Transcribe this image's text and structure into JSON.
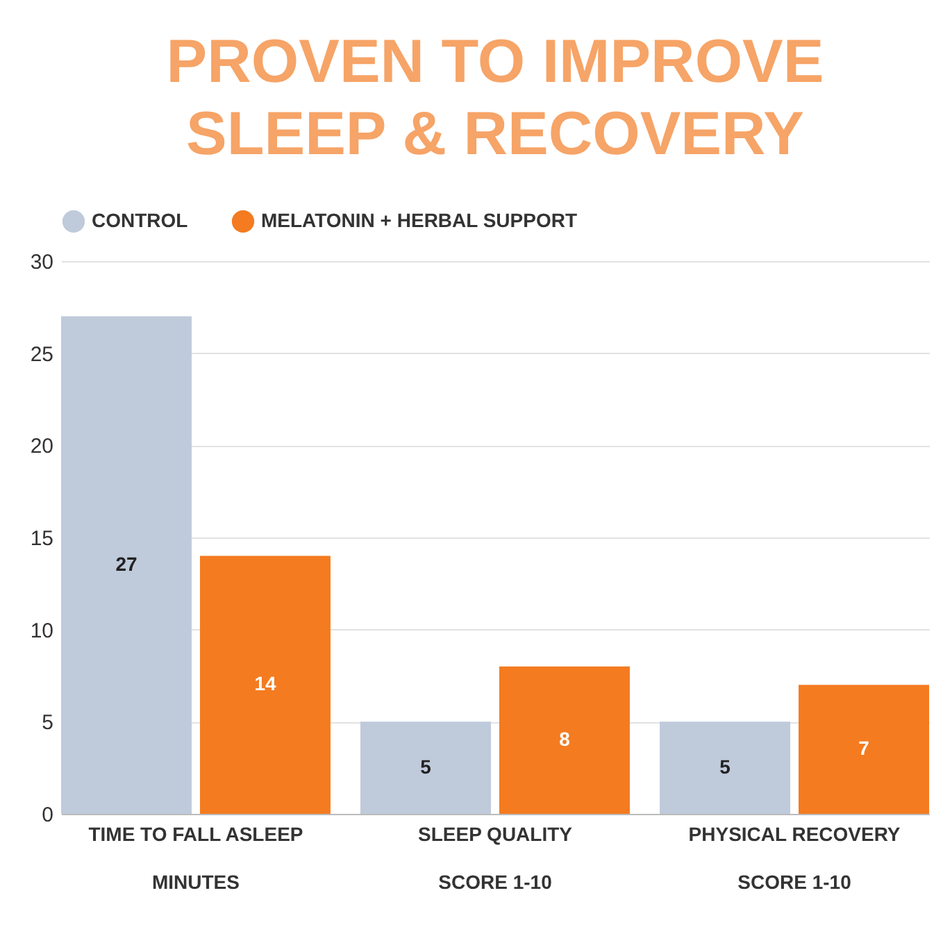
{
  "chart_data": {
    "type": "bar",
    "title": "PROVEN TO IMPROVE\nSLEEP & RECOVERY",
    "categories": [
      "TIME TO FALL ASLEEP",
      "SLEEP QUALITY",
      "PHYSICAL RECOVERY"
    ],
    "series": [
      {
        "name": "CONTROL",
        "color": "#bfcadb",
        "values": [
          27,
          5,
          5
        ]
      },
      {
        "name": "MELATONIN + HERBAL SUPPORT",
        "color": "#f47b20",
        "values": [
          14,
          8,
          7
        ]
      }
    ],
    "ylim": [
      0,
      30
    ],
    "yticks": [
      0,
      5,
      10,
      15,
      20,
      25,
      30
    ],
    "grid": "y",
    "legend": "top",
    "data_labels": true,
    "annotations": [
      "MINUTES",
      "SCORE 1-10",
      "SCORE 1-10"
    ]
  }
}
